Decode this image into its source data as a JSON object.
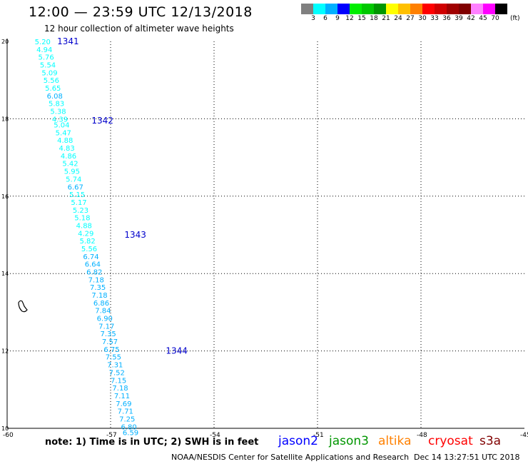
{
  "header": {
    "title": "12:00 — 23:59 UTC 12/13/2018",
    "subtitle": "12 hour collection of altimeter wave heights"
  },
  "legend": {
    "colors": [
      "#808080",
      "#00ffff",
      "#00b0ff",
      "#0000ff",
      "#00ee00",
      "#00c800",
      "#009600",
      "#ffff00",
      "#ffc000",
      "#ff8000",
      "#ff0000",
      "#d00000",
      "#a00000",
      "#800000",
      "#ff80ff",
      "#ff00ff",
      "#000000"
    ],
    "ticks": [
      "3",
      "6",
      "9",
      "12",
      "15",
      "18",
      "21",
      "24",
      "27",
      "30",
      "33",
      "36",
      "39",
      "42",
      "45",
      "70"
    ],
    "unit": "(ft)"
  },
  "map": {
    "lon_ticks": [
      "-60",
      "-57",
      "-54",
      "-51",
      "-48",
      "-45"
    ],
    "lat_ticks": [
      "20",
      "18",
      "16",
      "14",
      "12",
      "10"
    ],
    "lon_range": [
      -60,
      -45
    ],
    "lat_range": [
      10,
      20
    ]
  },
  "track": {
    "orbits": [
      {
        "label": "1341",
        "lat": 20.0,
        "lon": -58.55
      },
      {
        "label": "1342",
        "lat": 17.95,
        "lon": -57.55
      },
      {
        "label": "1343",
        "lat": 15.0,
        "lon": -56.6
      },
      {
        "label": "1344",
        "lat": 12.0,
        "lon": -55.4
      }
    ],
    "points": [
      {
        "lat": 20.0,
        "lon": -59.2,
        "swh": "5.20"
      },
      {
        "lat": 19.8,
        "lon": -59.15,
        "swh": "4.94"
      },
      {
        "lat": 19.6,
        "lon": -59.1,
        "swh": "5.76"
      },
      {
        "lat": 19.4,
        "lon": -59.05,
        "swh": "5.54"
      },
      {
        "lat": 19.2,
        "lon": -59.0,
        "swh": "5.09"
      },
      {
        "lat": 19.0,
        "lon": -58.95,
        "swh": "5.56"
      },
      {
        "lat": 18.8,
        "lon": -58.9,
        "swh": "5.65"
      },
      {
        "lat": 18.6,
        "lon": -58.85,
        "swh": "6.08"
      },
      {
        "lat": 18.4,
        "lon": -58.8,
        "swh": "5.83"
      },
      {
        "lat": 18.2,
        "lon": -58.75,
        "swh": "5.38"
      },
      {
        "lat": 18.0,
        "lon": -58.7,
        "swh": "4.39"
      },
      {
        "lat": 17.85,
        "lon": -58.65,
        "swh": "5.04"
      },
      {
        "lat": 17.65,
        "lon": -58.6,
        "swh": "5.47"
      },
      {
        "lat": 17.45,
        "lon": -58.55,
        "swh": "4.88"
      },
      {
        "lat": 17.25,
        "lon": -58.5,
        "swh": "4.83"
      },
      {
        "lat": 17.05,
        "lon": -58.45,
        "swh": "4.86"
      },
      {
        "lat": 16.85,
        "lon": -58.4,
        "swh": "5.42"
      },
      {
        "lat": 16.65,
        "lon": -58.35,
        "swh": "5.95"
      },
      {
        "lat": 16.45,
        "lon": -58.3,
        "swh": "5.74"
      },
      {
        "lat": 16.25,
        "lon": -58.25,
        "swh": "6.67"
      },
      {
        "lat": 16.05,
        "lon": -58.2,
        "swh": "5.15"
      },
      {
        "lat": 15.85,
        "lon": -58.15,
        "swh": "5.17"
      },
      {
        "lat": 15.65,
        "lon": -58.1,
        "swh": "5.23"
      },
      {
        "lat": 15.45,
        "lon": -58.05,
        "swh": "5.18"
      },
      {
        "lat": 15.25,
        "lon": -58.0,
        "swh": "4.88"
      },
      {
        "lat": 15.05,
        "lon": -57.95,
        "swh": "4.29"
      },
      {
        "lat": 14.85,
        "lon": -57.9,
        "swh": "5.82"
      },
      {
        "lat": 14.65,
        "lon": -57.85,
        "swh": "5.56"
      },
      {
        "lat": 14.45,
        "lon": -57.8,
        "swh": "6.74"
      },
      {
        "lat": 14.25,
        "lon": -57.75,
        "swh": "6.64"
      },
      {
        "lat": 14.05,
        "lon": -57.7,
        "swh": "6.82"
      },
      {
        "lat": 13.85,
        "lon": -57.65,
        "swh": "7.18"
      },
      {
        "lat": 13.65,
        "lon": -57.6,
        "swh": "7.35"
      },
      {
        "lat": 13.45,
        "lon": -57.55,
        "swh": "7.18"
      },
      {
        "lat": 13.25,
        "lon": -57.5,
        "swh": "6.86"
      },
      {
        "lat": 13.05,
        "lon": -57.45,
        "swh": "7.84"
      },
      {
        "lat": 12.85,
        "lon": -57.4,
        "swh": "6.90"
      },
      {
        "lat": 12.65,
        "lon": -57.35,
        "swh": "7.17"
      },
      {
        "lat": 12.45,
        "lon": -57.3,
        "swh": "7.35"
      },
      {
        "lat": 12.25,
        "lon": -57.25,
        "swh": "7.57"
      },
      {
        "lat": 12.05,
        "lon": -57.2,
        "swh": "6.75"
      },
      {
        "lat": 11.85,
        "lon": -57.15,
        "swh": "7.55"
      },
      {
        "lat": 11.65,
        "lon": -57.1,
        "swh": "7.31"
      },
      {
        "lat": 11.45,
        "lon": -57.05,
        "swh": "7.52"
      },
      {
        "lat": 11.25,
        "lon": -57.0,
        "swh": "7.15"
      },
      {
        "lat": 11.05,
        "lon": -56.95,
        "swh": "7.18"
      },
      {
        "lat": 10.85,
        "lon": -56.9,
        "swh": "7.11"
      },
      {
        "lat": 10.65,
        "lon": -56.85,
        "swh": "7.69"
      },
      {
        "lat": 10.45,
        "lon": -56.8,
        "swh": "7.71"
      },
      {
        "lat": 10.25,
        "lon": -56.75,
        "swh": "7.25"
      },
      {
        "lat": 10.05,
        "lon": -56.7,
        "swh": "6.80"
      },
      {
        "lat": 9.9,
        "lon": -56.65,
        "swh": "6.59"
      }
    ]
  },
  "footer": {
    "note": "note:  1) Time is in UTC;  2) SWH is in feet",
    "satellites": [
      {
        "name": "jason2",
        "color": "#0000ff"
      },
      {
        "name": "jason3",
        "color": "#009600"
      },
      {
        "name": "altika",
        "color": "#ff8000"
      },
      {
        "name": "cryosat",
        "color": "#ff0000"
      },
      {
        "name": "s3a",
        "color": "#800000"
      }
    ],
    "credit": "NOAA/NESDIS Center for Satellite Applications and Research",
    "timestamp": "Dec 14 13:27:51 UTC 2018"
  }
}
